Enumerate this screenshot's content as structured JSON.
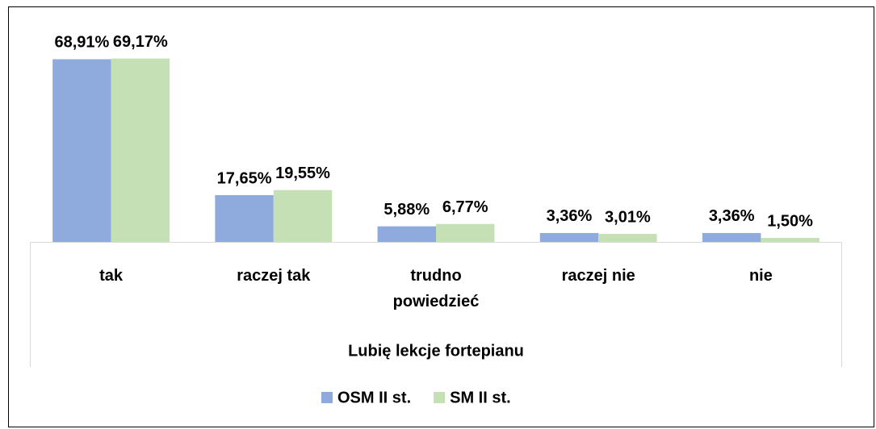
{
  "chart_data": {
    "type": "bar",
    "x_label": "Lubię lekcje fortepianu",
    "categories": [
      "tak",
      "raczej tak",
      "trudno powiedzieć",
      "raczej nie",
      "nie"
    ],
    "series": [
      {
        "name": "OSM II st.",
        "color": "#8faadc",
        "values": [
          68.91,
          17.65,
          5.88,
          3.36,
          3.36
        ],
        "value_labels": [
          "68,91%",
          "17,65%",
          "5,88%",
          "3,36%",
          "3,36%"
        ]
      },
      {
        "name": "SM II st.",
        "color": "#c5e0b4",
        "values": [
          69.17,
          19.55,
          6.77,
          3.01,
          1.5
        ],
        "value_labels": [
          "69,17%",
          "19,55%",
          "6,77%",
          "3,01%",
          "1,50%"
        ]
      }
    ],
    "ylim": [
      0,
      80
    ],
    "legend": "bottom"
  }
}
